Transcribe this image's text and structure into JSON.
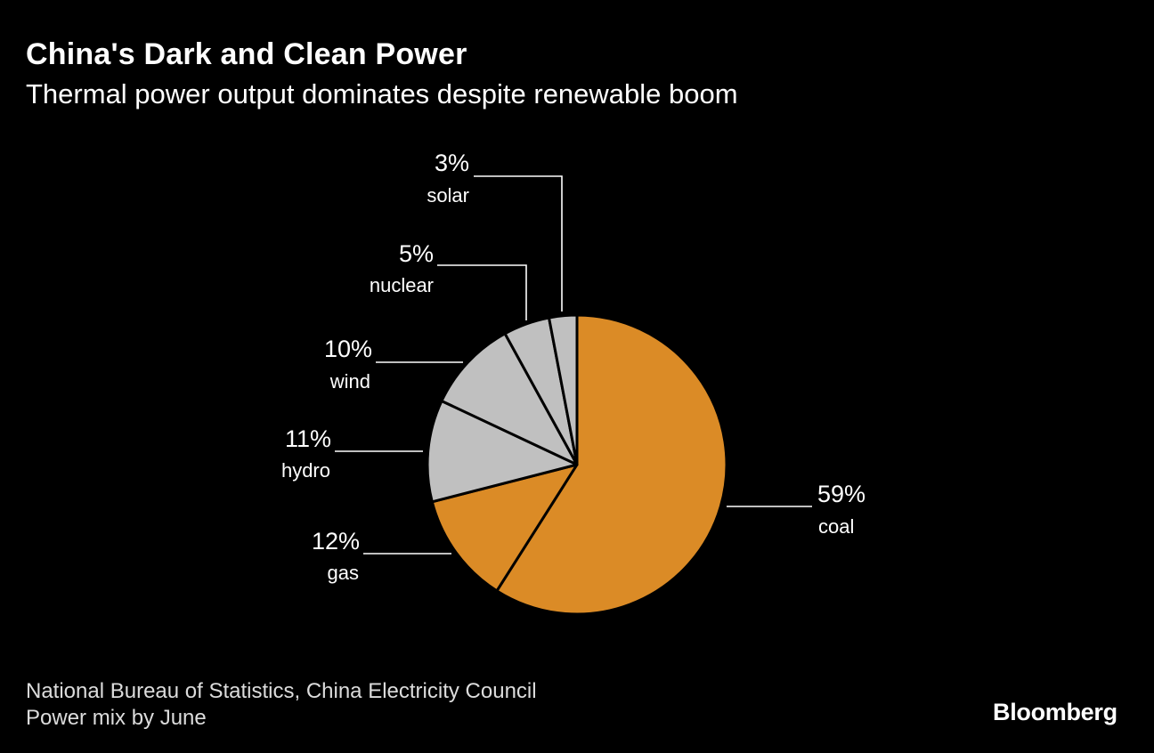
{
  "header": {
    "title": "China's Dark and Clean Power",
    "subtitle": "Thermal power output dominates despite renewable boom"
  },
  "footer": {
    "source_line1": "National Bureau of Statistics, China Electricity Council",
    "source_line2": "Power mix by June",
    "logo": "Bloomberg"
  },
  "colors": {
    "thermal": "#db8b26",
    "clean": "#c0c0c0",
    "background": "#000000",
    "outline": "#000000"
  },
  "chart_data": {
    "type": "pie",
    "title": "China's Dark and Clean Power",
    "subtitle": "Thermal power output dominates despite renewable boom",
    "start_angle": "12 o'clock, clockwise",
    "slices": [
      {
        "label": "coal",
        "value": 59,
        "value_label": "59%",
        "group": "thermal"
      },
      {
        "label": "gas",
        "value": 12,
        "value_label": "12%",
        "group": "thermal"
      },
      {
        "label": "hydro",
        "value": 11,
        "value_label": "11%",
        "group": "clean"
      },
      {
        "label": "wind",
        "value": 10,
        "value_label": "10%",
        "group": "clean"
      },
      {
        "label": "nuclear",
        "value": 5,
        "value_label": "5%",
        "group": "clean"
      },
      {
        "label": "solar",
        "value": 3,
        "value_label": "3%",
        "group": "clean"
      }
    ]
  }
}
